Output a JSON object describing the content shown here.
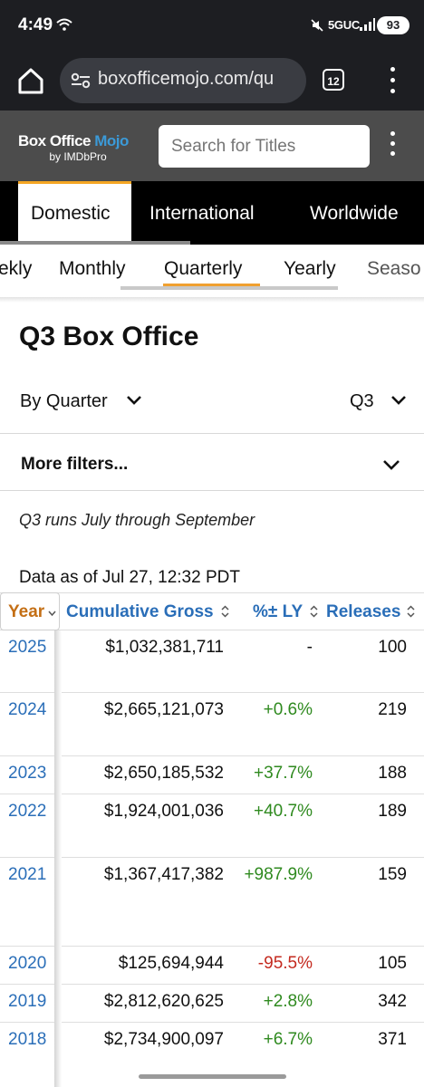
{
  "status_bar": {
    "time": "4:49",
    "network": "5GUC",
    "battery": "93"
  },
  "browser": {
    "url": "boxofficemojo.com/qu",
    "tab_count": "12"
  },
  "site": {
    "logo_main": "Box Office ",
    "logo_accent": "Mojo",
    "logo_sub": "by IMDbPro",
    "search_placeholder": "Search for Titles"
  },
  "region_tabs": [
    "Domestic",
    "International",
    "Worldwide"
  ],
  "period_tabs": [
    "ekly",
    "Monthly",
    "Quarterly",
    "Yearly",
    "Seaso"
  ],
  "page": {
    "title": "Q3 Box Office",
    "view_select": "By Quarter",
    "quarter_select": "Q3",
    "more_filters": "More filters...",
    "note": "Q3 runs July through September",
    "data_as_of": "Data as of Jul 27, 12:32 PDT"
  },
  "table": {
    "headers": {
      "year": "Year",
      "gross": "Cumulative Gross",
      "pct": "%± LY",
      "releases": "Releases"
    },
    "rows": [
      {
        "year": "2025",
        "gross": "$1,032,381,711",
        "pct": "-",
        "pct_kind": "neu",
        "releases": "100"
      },
      {
        "year": "2024",
        "gross": "$2,665,121,073",
        "pct": "+0.6%",
        "pct_kind": "pos",
        "releases": "219"
      },
      {
        "year": "2023",
        "gross": "$2,650,185,532",
        "pct": "+37.7%",
        "pct_kind": "pos",
        "releases": "188"
      },
      {
        "year": "2022",
        "gross": "$1,924,001,036",
        "pct": "+40.7%",
        "pct_kind": "pos",
        "releases": "189"
      },
      {
        "year": "2021",
        "gross": "$1,367,417,382",
        "pct": "+987.9%",
        "pct_kind": "pos",
        "releases": "159"
      },
      {
        "year": "2020",
        "gross": "$125,694,944",
        "pct": "-95.5%",
        "pct_kind": "neg",
        "releases": "105"
      },
      {
        "year": "2019",
        "gross": "$2,812,620,625",
        "pct": "+2.8%",
        "pct_kind": "pos",
        "releases": "342"
      },
      {
        "year": "2018",
        "gross": "$2,734,900,097",
        "pct": "+6.7%",
        "pct_kind": "pos",
        "releases": "371"
      }
    ]
  },
  "colors": {
    "accent": "#f5a623",
    "link": "#2a6eb8",
    "positive": "#2f8a1f",
    "negative": "#c42a1f",
    "header_bg": "#4c4c4c"
  },
  "icons": [
    "wifi-icon",
    "mute-icon",
    "signal-icon",
    "home-icon",
    "site-settings-icon",
    "overflow-menu-icon",
    "chevron-down-icon",
    "sort-icon"
  ]
}
